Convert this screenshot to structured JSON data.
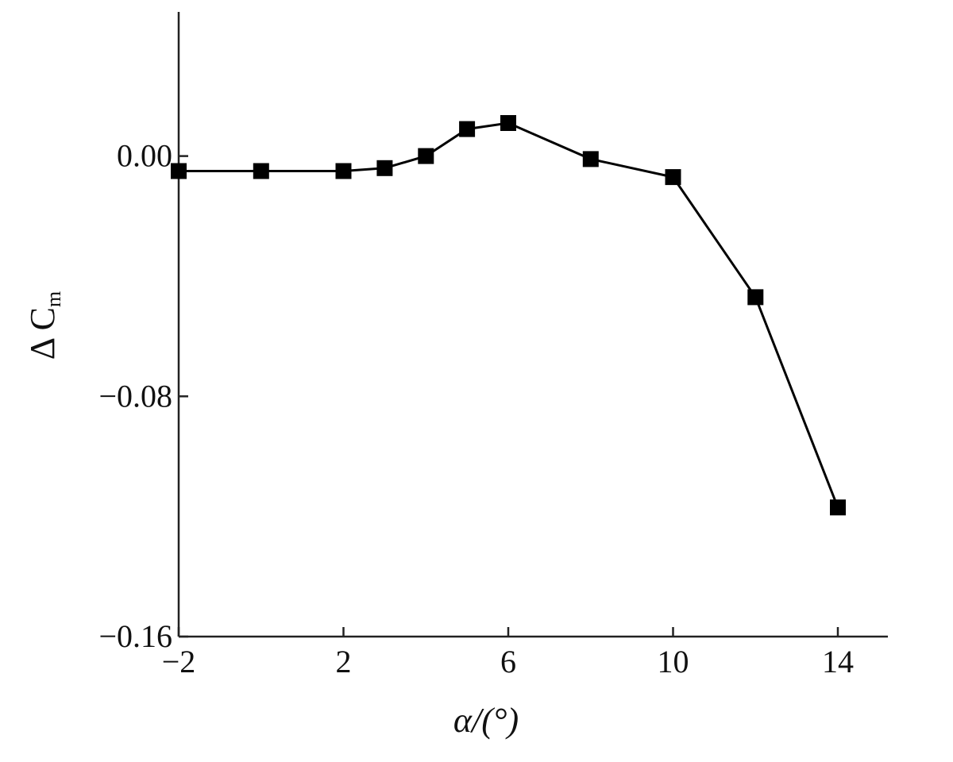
{
  "chart_data": {
    "type": "line",
    "x": [
      -2,
      0,
      2,
      3,
      4,
      5,
      6,
      8,
      10,
      12,
      14
    ],
    "series": [
      {
        "values": [
          -0.005,
          -0.005,
          -0.005,
          -0.004,
          0.0,
          0.009,
          0.011,
          -0.001,
          -0.007,
          -0.047,
          -0.117
        ]
      }
    ],
    "xticks": [
      -2,
      2,
      6,
      10,
      14
    ],
    "xtick_labels": [
      "−2",
      "2",
      "6",
      "10",
      "14"
    ],
    "yticks": [
      0.0,
      -0.08,
      -0.16
    ],
    "ytick_labels": [
      "0.00",
      "−0.08",
      "−0.16"
    ],
    "xlabel": "α/(°)",
    "ylabel": "Δ C",
    "ylabel_sub": "m",
    "xlim": [
      -2,
      15
    ],
    "ylim": [
      -0.16,
      0.048
    ],
    "marker": "square",
    "grid": false
  }
}
